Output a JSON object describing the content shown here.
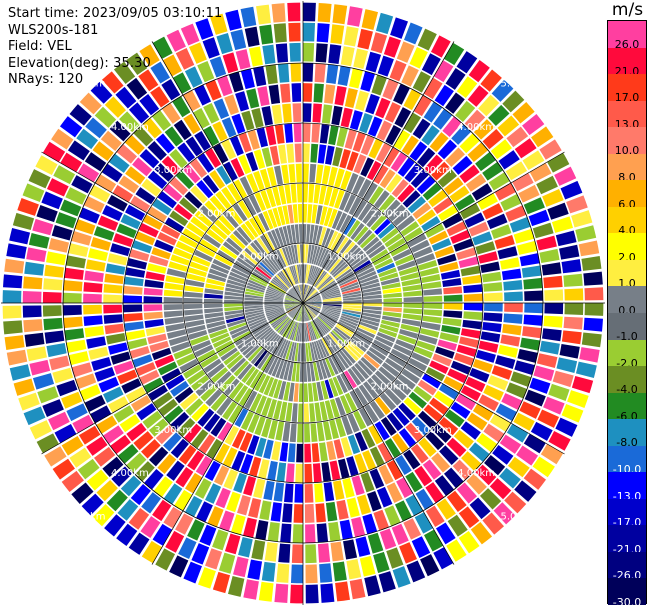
{
  "info": {
    "start_time": "Start time: 2023/09/05 03:10:11",
    "instrument": "WLS200s-181",
    "field": "Field: VEL",
    "elevation": "Elevation(deg): 35.30",
    "nrays": "NRays: 120"
  },
  "colorbar": {
    "unit": "m/s",
    "levels": [
      {
        "label": "26.0",
        "color": "#ff3fa0"
      },
      {
        "label": "21.0",
        "color": "#ff0a3c"
      },
      {
        "label": "17.0",
        "color": "#ff3a1a"
      },
      {
        "label": "13.0",
        "color": "#ff5a4a"
      },
      {
        "label": "10.0",
        "color": "#ff7a6a"
      },
      {
        "label": "8.0",
        "color": "#ffa050"
      },
      {
        "label": "6.0",
        "color": "#ffb000"
      },
      {
        "label": "4.0",
        "color": "#ffd000"
      },
      {
        "label": "2.0",
        "color": "#ffff00"
      },
      {
        "label": "1.0",
        "color": "#ffee40"
      },
      {
        "label": "0.0",
        "color": "#777f88"
      },
      {
        "label": "-1.0",
        "color": "#666e76"
      },
      {
        "label": "-2.0",
        "color": "#9acd32"
      },
      {
        "label": "-4.0",
        "color": "#6b8e23"
      },
      {
        "label": "-6.0",
        "color": "#228b22"
      },
      {
        "label": "-8.0",
        "color": "#1e90c0"
      },
      {
        "label": "-10.0",
        "color": "#1a6ad8"
      },
      {
        "label": "-13.0",
        "color": "#0000ff"
      },
      {
        "label": "-17.0",
        "color": "#0000cc"
      },
      {
        "label": "-21.0",
        "color": "#0000a0"
      },
      {
        "label": "-26.0",
        "color": "#000080"
      },
      {
        "label": "-30.0",
        "color": "#00005a"
      }
    ]
  },
  "range_labels": [
    "1.00km",
    "2.00km",
    "3.00km",
    "4.00km",
    "5.00km"
  ]
}
